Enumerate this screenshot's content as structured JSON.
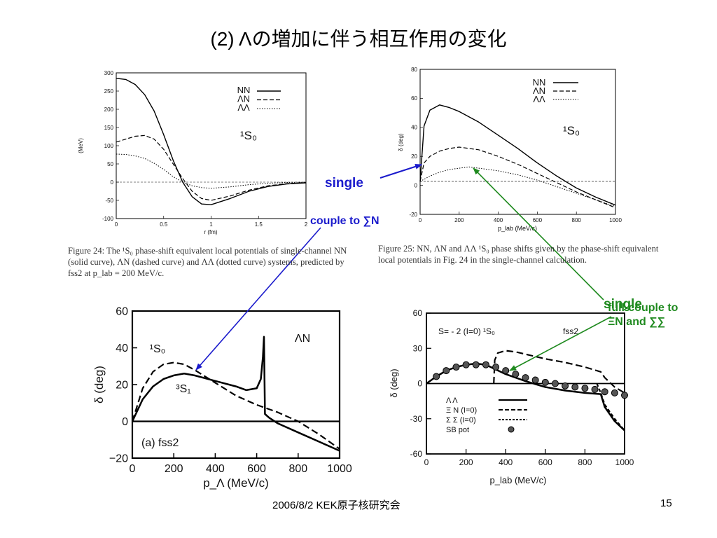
{
  "slide": {
    "title": "(2) Λの増加に伴う相互作用の変化",
    "footer_center": "2006/8/2  KEK原子核研究会",
    "page_number": "15"
  },
  "annotations": {
    "single_top": "single",
    "couple": "couple to ∑N",
    "single_right": "single",
    "full_couple_line1": "full-couple to",
    "full_couple_line2": "ΞN and ∑∑",
    "blue": "#1a1acc",
    "green": "#1f8a1f"
  },
  "captions": {
    "fig24": "Figure 24:  The ¹S₀ phase-shift equivalent local potentials of single-channel NN (solid curve), ΛN (dashed curve) and ΛΛ (dotted curve) systems, predicted by fss2 at p_lab = 200 MeV/c.",
    "fig25": "Figure 25:  NN, ΛN and ΛΛ ¹S₀ phase shifts given by the phase-shift equivalent local potentials in Fig. 24 in the single-channel calculation."
  },
  "chart_data": [
    {
      "id": "potentials",
      "type": "line",
      "ylabel": "(MeV)",
      "xlabel": "r (fm)",
      "xlim": [
        0,
        2
      ],
      "ylim": [
        -100,
        300
      ],
      "xticks": [
        "0",
        "0.5",
        "1",
        "1.5",
        "2"
      ],
      "yticks": [
        "300",
        "250",
        "200",
        "150",
        "100",
        "50",
        "0",
        "-50",
        "-100"
      ],
      "label": "¹S₀",
      "series": [
        {
          "name": "NN",
          "style": "solid",
          "x": [
            0,
            0.1,
            0.2,
            0.3,
            0.4,
            0.5,
            0.6,
            0.7,
            0.8,
            0.9,
            1.0,
            1.2,
            1.4,
            1.6,
            1.8,
            2.0
          ],
          "y": [
            285,
            282,
            268,
            240,
            195,
            130,
            60,
            0,
            -40,
            -60,
            -62,
            -45,
            -25,
            -12,
            -5,
            -2
          ]
        },
        {
          "name": "ΛN",
          "style": "dashed",
          "x": [
            0,
            0.1,
            0.2,
            0.3,
            0.4,
            0.5,
            0.6,
            0.7,
            0.8,
            0.9,
            1.0,
            1.2,
            1.4,
            1.6,
            1.8,
            2.0
          ],
          "y": [
            110,
            118,
            126,
            128,
            118,
            90,
            50,
            10,
            -25,
            -45,
            -50,
            -38,
            -22,
            -10,
            -4,
            -1
          ]
        },
        {
          "name": "ΛΛ",
          "style": "dotted",
          "x": [
            0,
            0.1,
            0.2,
            0.3,
            0.4,
            0.5,
            0.6,
            0.7,
            0.8,
            0.9,
            1.0,
            1.2,
            1.4,
            1.6,
            1.8,
            2.0
          ],
          "y": [
            77,
            76,
            72,
            65,
            52,
            35,
            15,
            0,
            -10,
            -15,
            -17,
            -13,
            -7,
            -3,
            -1,
            0
          ]
        }
      ]
    },
    {
      "id": "phase_single",
      "type": "line",
      "ylabel": "δ (deg)",
      "xlabel": "p_lab (MeV/c)",
      "xlim": [
        0,
        1000
      ],
      "ylim": [
        -25,
        85
      ],
      "xticks": [
        "0",
        "200",
        "400",
        "600",
        "800",
        "1000"
      ],
      "yticks": [
        "80",
        "60",
        "40",
        "20",
        "0",
        "-20"
      ],
      "label": "¹S₀",
      "series": [
        {
          "name": "NN",
          "style": "solid",
          "x": [
            0,
            20,
            50,
            100,
            150,
            200,
            300,
            400,
            500,
            600,
            700,
            800,
            900,
            1000
          ],
          "y": [
            0,
            42,
            54,
            58,
            56,
            53,
            45,
            35,
            25,
            14,
            4,
            -5,
            -12,
            -18
          ]
        },
        {
          "name": "ΛN",
          "style": "dashed",
          "x": [
            0,
            20,
            50,
            100,
            150,
            200,
            300,
            400,
            500,
            600,
            700,
            800,
            900,
            1000
          ],
          "y": [
            0,
            14,
            19,
            23,
            25,
            26,
            24,
            19,
            13,
            6,
            -1,
            -8,
            -14,
            -20
          ]
        },
        {
          "name": "ΛΛ",
          "style": "dotted",
          "x": [
            0,
            50,
            100,
            150,
            200,
            250,
            300,
            400,
            500,
            600,
            700,
            800,
            900,
            1000
          ],
          "y": [
            0,
            4,
            7,
            9,
            10,
            11,
            10,
            8,
            5,
            1,
            -4,
            -9,
            -14,
            -19
          ]
        }
      ]
    },
    {
      "id": "lambda_n",
      "type": "line",
      "ylabel": "δ (deg)",
      "xlabel": "p_Λ (MeV/c)",
      "xlim": [
        0,
        1000
      ],
      "ylim": [
        -20,
        60
      ],
      "xticks": [
        "0",
        "200",
        "400",
        "600",
        "800",
        "1000"
      ],
      "yticks": [
        "60",
        "40",
        "20",
        "0",
        "−20"
      ],
      "title": "ΛN",
      "panel": "(a)    fss2",
      "series": [
        {
          "name": "¹S₀",
          "style": "dashed",
          "x": [
            0,
            50,
            100,
            150,
            200,
            250,
            300,
            400,
            500,
            600,
            700,
            800,
            900,
            1000
          ],
          "y": [
            0,
            18,
            27,
            31,
            32,
            31,
            28,
            21,
            14,
            9,
            5,
            0,
            -7,
            -15
          ]
        },
        {
          "name": "³S₁",
          "style": "solid",
          "x": [
            0,
            50,
            100,
            150,
            200,
            250,
            300,
            400,
            500,
            550,
            600,
            620,
            630,
            635,
            640,
            660,
            700,
            800,
            900,
            1000
          ],
          "y": [
            0,
            12,
            19,
            23,
            25,
            26,
            25,
            22,
            19,
            17,
            18,
            23,
            35,
            46,
            4,
            2,
            -1,
            -6,
            -11,
            -16
          ]
        }
      ]
    },
    {
      "id": "s_minus2",
      "type": "line",
      "ylabel": "δ (deg)",
      "xlabel": "p_lab (MeV/c)",
      "xlim": [
        0,
        1000
      ],
      "ylim": [
        -60,
        60
      ],
      "xticks": [
        "0",
        "200",
        "400",
        "600",
        "800",
        "1000"
      ],
      "yticks": [
        "60",
        "30",
        "0",
        "-30",
        "-60"
      ],
      "title": "S= - 2 (I=0) ¹S₀",
      "model": "fss2",
      "series": [
        {
          "name": "Λ Λ",
          "style": "solid",
          "x": [
            0,
            50,
            100,
            150,
            200,
            250,
            300,
            350,
            400,
            500,
            600,
            700,
            800,
            880,
            900,
            950,
            1000
          ],
          "y": [
            0,
            6,
            11,
            14,
            16,
            17,
            16,
            12,
            8,
            2,
            -3,
            -6,
            -8,
            -9,
            -20,
            -32,
            -40
          ]
        },
        {
          "name": "Ξ N (I=0)",
          "style": "dashed",
          "x": [
            340,
            345,
            360,
            400,
            450,
            500,
            600,
            700,
            800,
            880,
            900,
            950,
            1000
          ],
          "y": [
            0,
            20,
            26,
            28,
            27,
            25,
            21,
            18,
            14,
            10,
            5,
            -3,
            -8
          ]
        },
        {
          "name": "Σ Σ (I=0)",
          "style": "densedash",
          "x": [
            860,
            880,
            900,
            950,
            1000
          ],
          "y": [
            0,
            -8,
            -18,
            -30,
            -40
          ]
        },
        {
          "name": "SB pot",
          "style": "points",
          "x": [
            50,
            100,
            150,
            200,
            250,
            300,
            350,
            400,
            450,
            500,
            550,
            600,
            650,
            700,
            750,
            800,
            850,
            900,
            950,
            1000
          ],
          "y": [
            6,
            11,
            14,
            16,
            16,
            16,
            14,
            11,
            8,
            5,
            3,
            1,
            0,
            -2,
            -3,
            -4,
            -5,
            -7,
            -8,
            -10
          ]
        }
      ]
    }
  ]
}
